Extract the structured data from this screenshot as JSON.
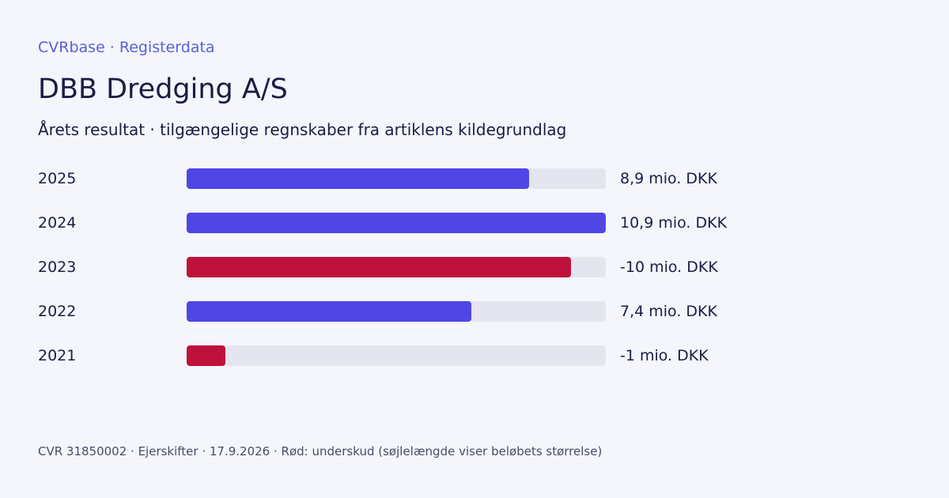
{
  "header": {
    "brand": "CVRbase · Registerdata",
    "title": "DBB Dredging A/S",
    "subtitle": "Årets resultat · tilgængelige regnskaber fra artiklens kildegrundlag"
  },
  "chart_data": {
    "type": "bar",
    "orientation": "horizontal",
    "unit": "mio. DKK",
    "categories": [
      "2025",
      "2024",
      "2023",
      "2022",
      "2021"
    ],
    "values": [
      8.9,
      10.9,
      -10,
      7.4,
      -1
    ],
    "value_labels": [
      "8,9 mio. DKK",
      "10,9 mio. DKK",
      "-10 mio. DKK",
      "7,4 mio. DKK",
      "-1 mio. DKK"
    ],
    "bar_length": "absolute value",
    "xlim": [
      0,
      10.9
    ],
    "grid": false,
    "legend": "none",
    "colors": {
      "positive": "#4f46e5",
      "negative": "#be123c",
      "track": "#e4e5ef"
    }
  },
  "footer": {
    "text": "CVR 31850002 · Ejerskifter · 17.9.2026 · Rød: underskud (søjlelængde viser beløbets størrelse)"
  }
}
